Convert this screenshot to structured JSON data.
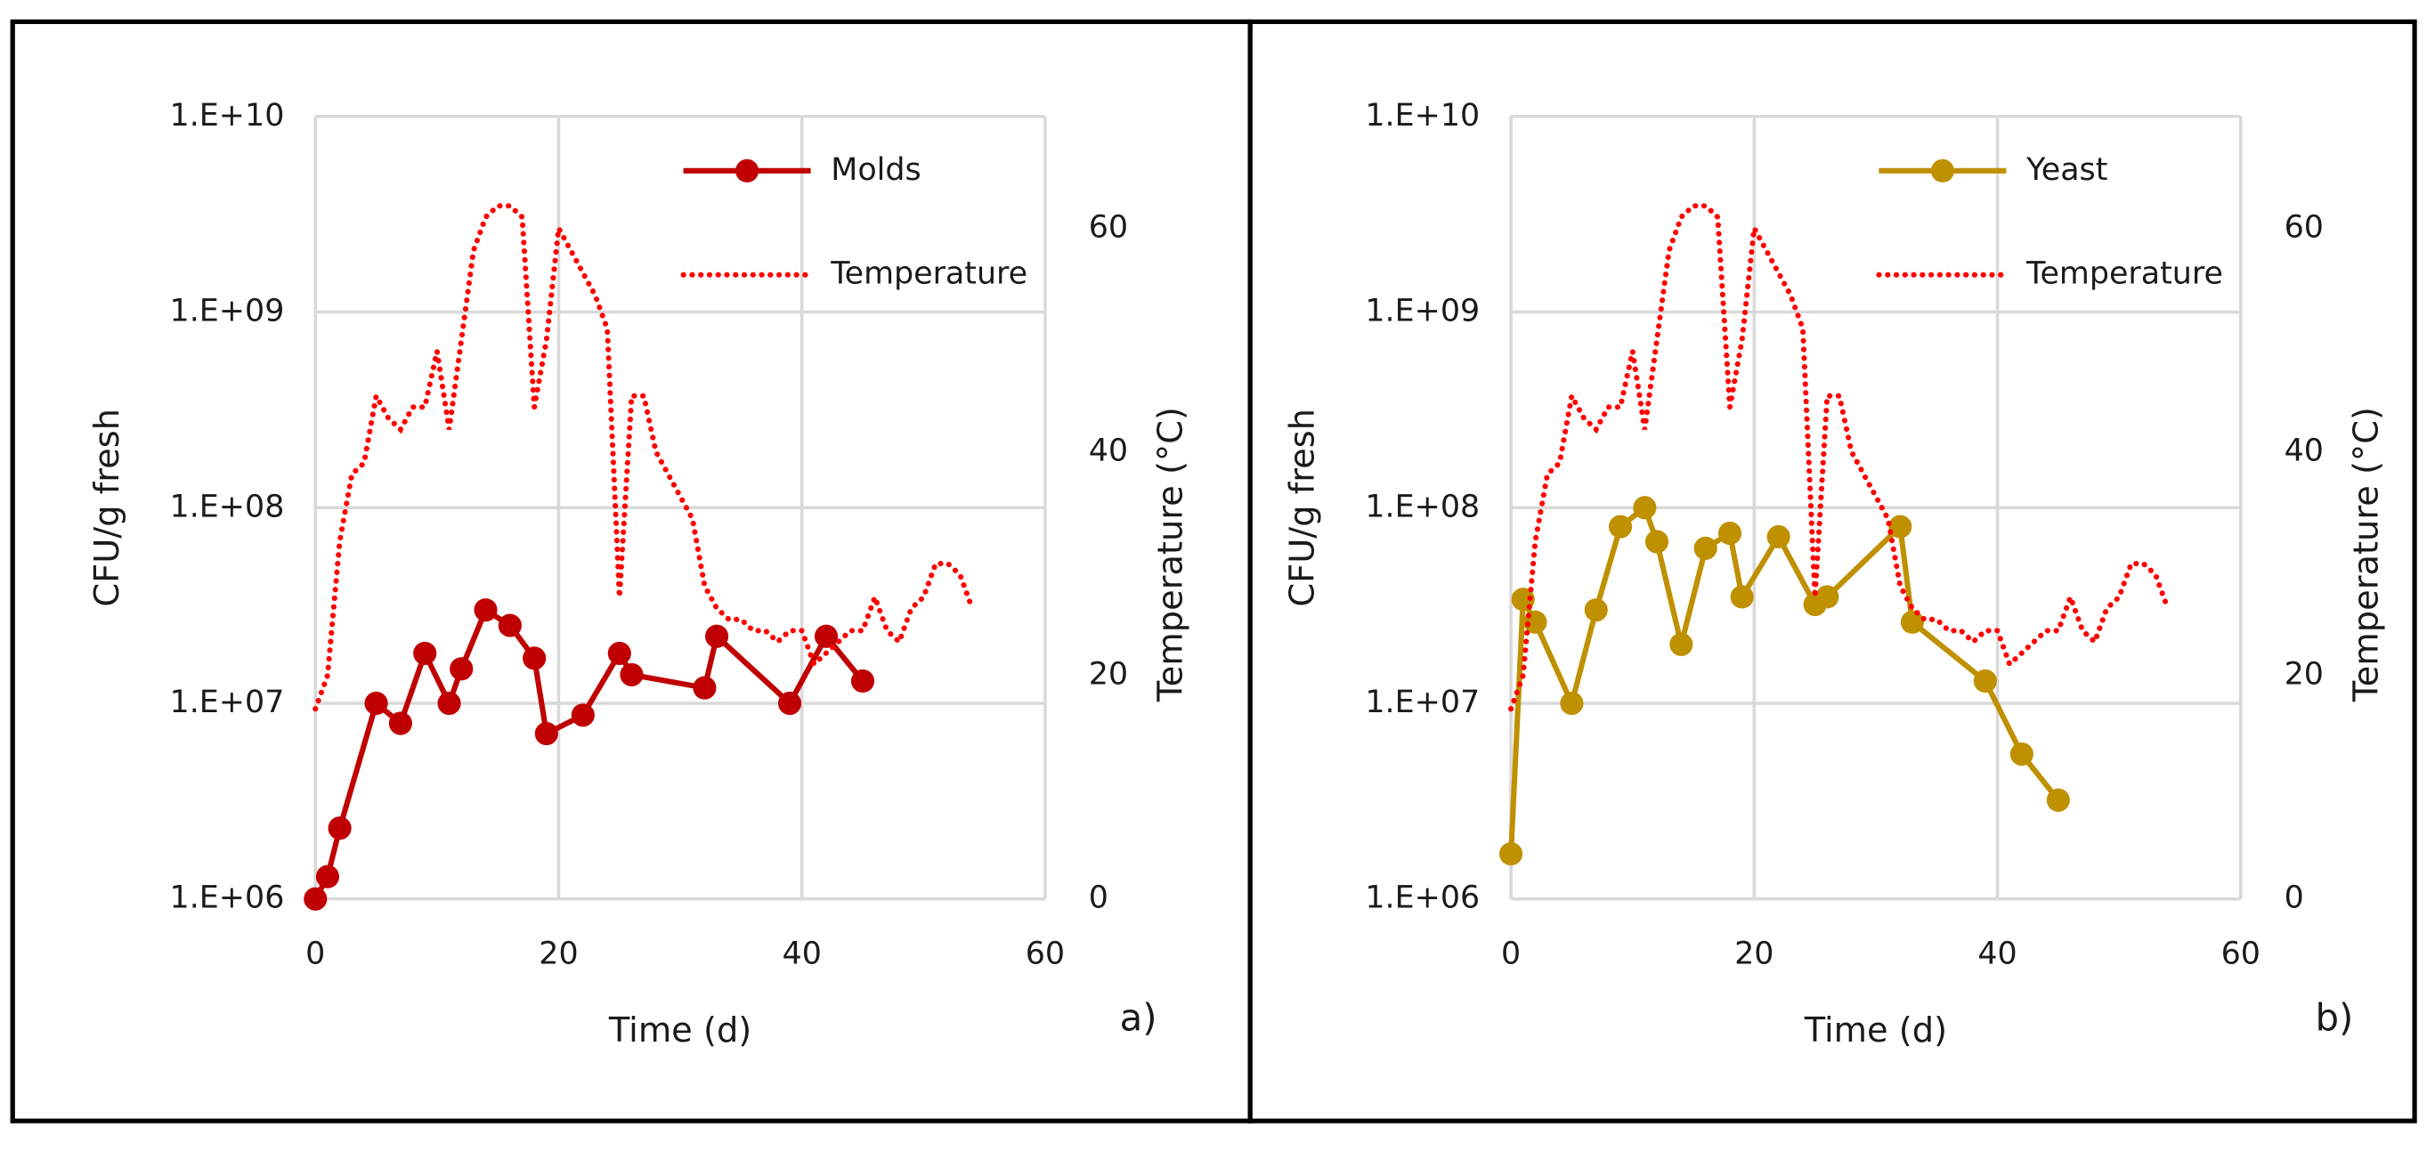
{
  "chart_data": [
    {
      "type": "line",
      "xlabel": "Time (d)",
      "ylabel": "CFU/g fresh",
      "y2label": "Temperature (°C)",
      "annotation": "a)",
      "xlim": [
        0,
        60
      ],
      "xticks": [
        0,
        20,
        40,
        60
      ],
      "ylim": [
        1000000,
        10000000000
      ],
      "ylog": true,
      "yticks": [
        {
          "value": 1000000,
          "label": "1.E+06"
        },
        {
          "value": 10000000,
          "label": "1.E+07"
        },
        {
          "value": 100000000,
          "label": "1.E+08"
        },
        {
          "value": 1000000000,
          "label": "1.E+09"
        },
        {
          "value": 10000000000,
          "label": "1.E+10"
        }
      ],
      "y2lim": [
        0,
        70
      ],
      "y2ticks": [
        0,
        20,
        40,
        60
      ],
      "grid": true,
      "legend": "upper right",
      "series": [
        {
          "name": "Molds",
          "color": "#c00000",
          "style": "solid",
          "marker": "circle",
          "x": [
            0,
            1,
            2,
            5,
            7,
            9,
            11,
            12,
            14,
            16,
            18,
            19,
            22,
            25,
            26,
            32,
            33,
            39,
            42,
            45
          ],
          "values": [
            1000000,
            1300000,
            2300000,
            10000000,
            7900000,
            18000000,
            10000000,
            15000000,
            30000000,
            25000000,
            17000000,
            7000000,
            8700000,
            18000000,
            14000000,
            12000000,
            22000000,
            10000000,
            22000000,
            13000000
          ]
        },
        {
          "name": "Temperature",
          "color": "#ff0000",
          "style": "dotted",
          "axis": "y2",
          "x": [
            0,
            1,
            2,
            3,
            4,
            5,
            6,
            7,
            8,
            9,
            10,
            11,
            12,
            13,
            14,
            15,
            16,
            17,
            18,
            19,
            20,
            21,
            22,
            23,
            24,
            25,
            26,
            27,
            28,
            29,
            30,
            31,
            32,
            33,
            34,
            35,
            36,
            37,
            38,
            39,
            40,
            41,
            42,
            43,
            44,
            45,
            46,
            47,
            48,
            49,
            50,
            51,
            52,
            53,
            54
          ],
          "values": [
            17,
            20,
            32,
            38,
            39,
            45,
            43,
            42,
            44,
            44,
            49,
            42,
            50,
            58,
            61,
            62,
            62,
            61,
            44,
            50,
            60,
            58,
            56,
            54,
            51,
            27,
            45,
            45,
            40,
            38,
            36,
            34,
            28,
            26,
            25,
            25,
            24,
            24,
            23,
            24,
            24,
            21,
            22,
            23,
            24,
            24,
            27,
            24,
            23,
            26,
            27,
            30,
            30,
            29,
            26
          ]
        }
      ]
    },
    {
      "type": "line",
      "xlabel": "Time (d)",
      "ylabel": "CFU/g fresh",
      "y2label": "Temperature (°C)",
      "annotation": "b)",
      "xlim": [
        0,
        60
      ],
      "xticks": [
        0,
        20,
        40,
        60
      ],
      "ylim": [
        1000000,
        10000000000
      ],
      "ylog": true,
      "yticks": [
        {
          "value": 1000000,
          "label": "1.E+06"
        },
        {
          "value": 10000000,
          "label": "1.E+07"
        },
        {
          "value": 100000000,
          "label": "1.E+08"
        },
        {
          "value": 1000000000,
          "label": "1.E+09"
        },
        {
          "value": 10000000000,
          "label": "1.E+10"
        }
      ],
      "y2lim": [
        0,
        70
      ],
      "y2ticks": [
        0,
        20,
        40,
        60
      ],
      "grid": true,
      "legend": "upper right",
      "series": [
        {
          "name": "Yeast",
          "color": "#bf9000",
          "style": "solid",
          "marker": "circle",
          "x": [
            0,
            1,
            2,
            5,
            7,
            9,
            11,
            12,
            14,
            16,
            18,
            19,
            22,
            25,
            26,
            32,
            33,
            39,
            42,
            45
          ],
          "values": [
            1700000,
            34000000,
            26000000,
            10000000,
            30000000,
            80000000,
            100000000,
            67000000,
            20000000,
            62000000,
            74000000,
            35000000,
            71000000,
            32000000,
            35000000,
            80000000,
            26000000,
            13000000,
            5500000,
            3200000
          ]
        },
        {
          "name": "Temperature",
          "color": "#ff0000",
          "style": "dotted",
          "axis": "y2",
          "x": [
            0,
            1,
            2,
            3,
            4,
            5,
            6,
            7,
            8,
            9,
            10,
            11,
            12,
            13,
            14,
            15,
            16,
            17,
            18,
            19,
            20,
            21,
            22,
            23,
            24,
            25,
            26,
            27,
            28,
            29,
            30,
            31,
            32,
            33,
            34,
            35,
            36,
            37,
            38,
            39,
            40,
            41,
            42,
            43,
            44,
            45,
            46,
            47,
            48,
            49,
            50,
            51,
            52,
            53,
            54
          ],
          "values": [
            17,
            20,
            32,
            38,
            39,
            45,
            43,
            42,
            44,
            44,
            49,
            42,
            50,
            58,
            61,
            62,
            62,
            61,
            44,
            50,
            60,
            58,
            56,
            54,
            51,
            27,
            45,
            45,
            40,
            38,
            36,
            34,
            28,
            26,
            25,
            25,
            24,
            24,
            23,
            24,
            24,
            21,
            22,
            23,
            24,
            24,
            27,
            24,
            23,
            26,
            27,
            30,
            30,
            29,
            26
          ]
        }
      ]
    }
  ]
}
